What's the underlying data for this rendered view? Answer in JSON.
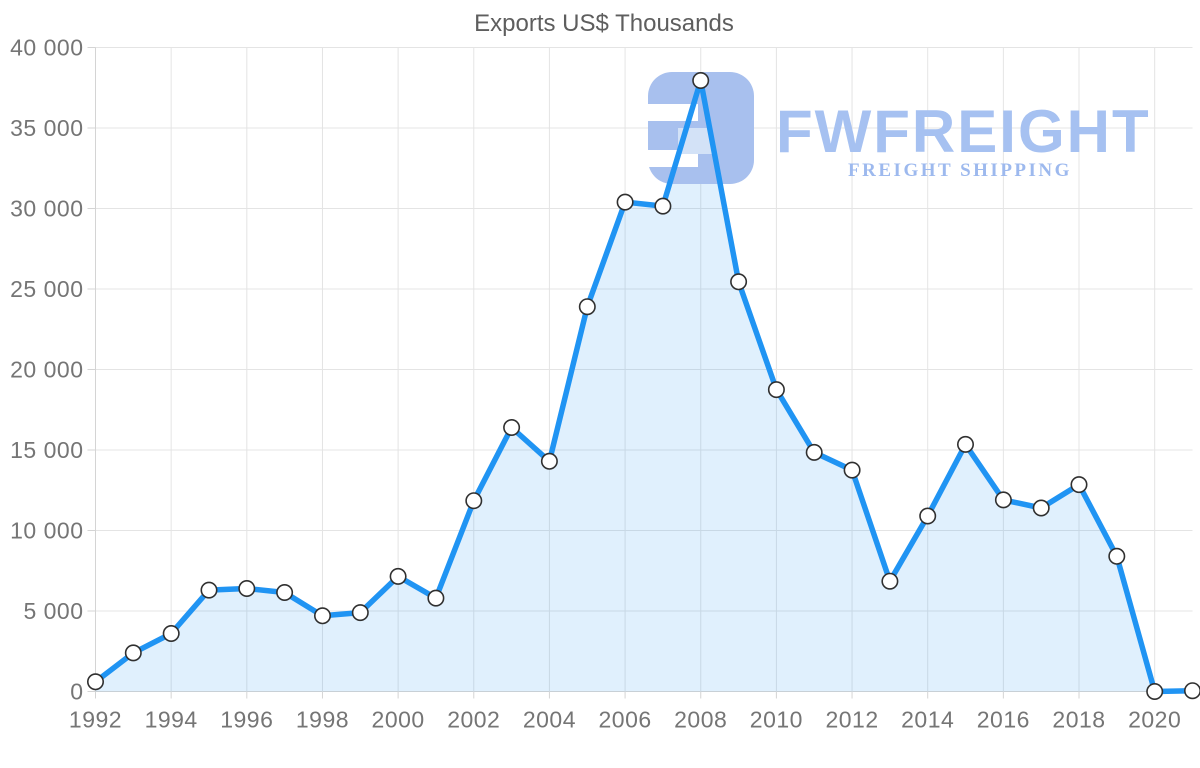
{
  "watermark": {
    "brand": "FWFREIGHT",
    "tagline": "FREIGHT SHIPPING"
  },
  "colors": {
    "line": "#2094f3",
    "fill": "rgba(33,148,243,0.14)",
    "grid": "#e4e4e4",
    "axis": "#d4d4d4",
    "tick_text": "#757575",
    "title_text": "#5e5e5e",
    "marker_fill": "#ffffff",
    "marker_stroke": "#303030",
    "logo": "#a8c0ee",
    "logo_light": "#d3e2f7"
  },
  "chart_data": {
    "type": "area",
    "title": "Exports US$ Thousands",
    "xlabel": "",
    "ylabel": "",
    "x": [
      1992,
      1993,
      1994,
      1995,
      1996,
      1997,
      1998,
      1999,
      2000,
      2001,
      2002,
      2003,
      2004,
      2005,
      2006,
      2007,
      2008,
      2009,
      2010,
      2011,
      2012,
      2013,
      2014,
      2015,
      2016,
      2017,
      2018,
      2019,
      2020,
      2021
    ],
    "values": [
      600,
      2400,
      3600,
      6300,
      6400,
      6150,
      4700,
      4900,
      7150,
      5800,
      11850,
      16400,
      14300,
      23900,
      30400,
      30150,
      37950,
      25450,
      18750,
      14850,
      13750,
      6850,
      10900,
      15350,
      11900,
      11400,
      12850,
      8400,
      0,
      50
    ],
    "ylim": [
      0,
      40000
    ],
    "ytick_step": 5000,
    "ytick_labels": [
      "0",
      "5 000",
      "10 000",
      "15 000",
      "20 000",
      "25 000",
      "30 000",
      "35 000",
      "40 000"
    ],
    "xtick_step": 2,
    "xtick_labels": [
      "1992",
      "1994",
      "1996",
      "1998",
      "2000",
      "2002",
      "2004",
      "2006",
      "2008",
      "2010",
      "2012",
      "2014",
      "2016",
      "2018",
      "2020"
    ],
    "grid": true,
    "legend": false,
    "markers": true
  }
}
